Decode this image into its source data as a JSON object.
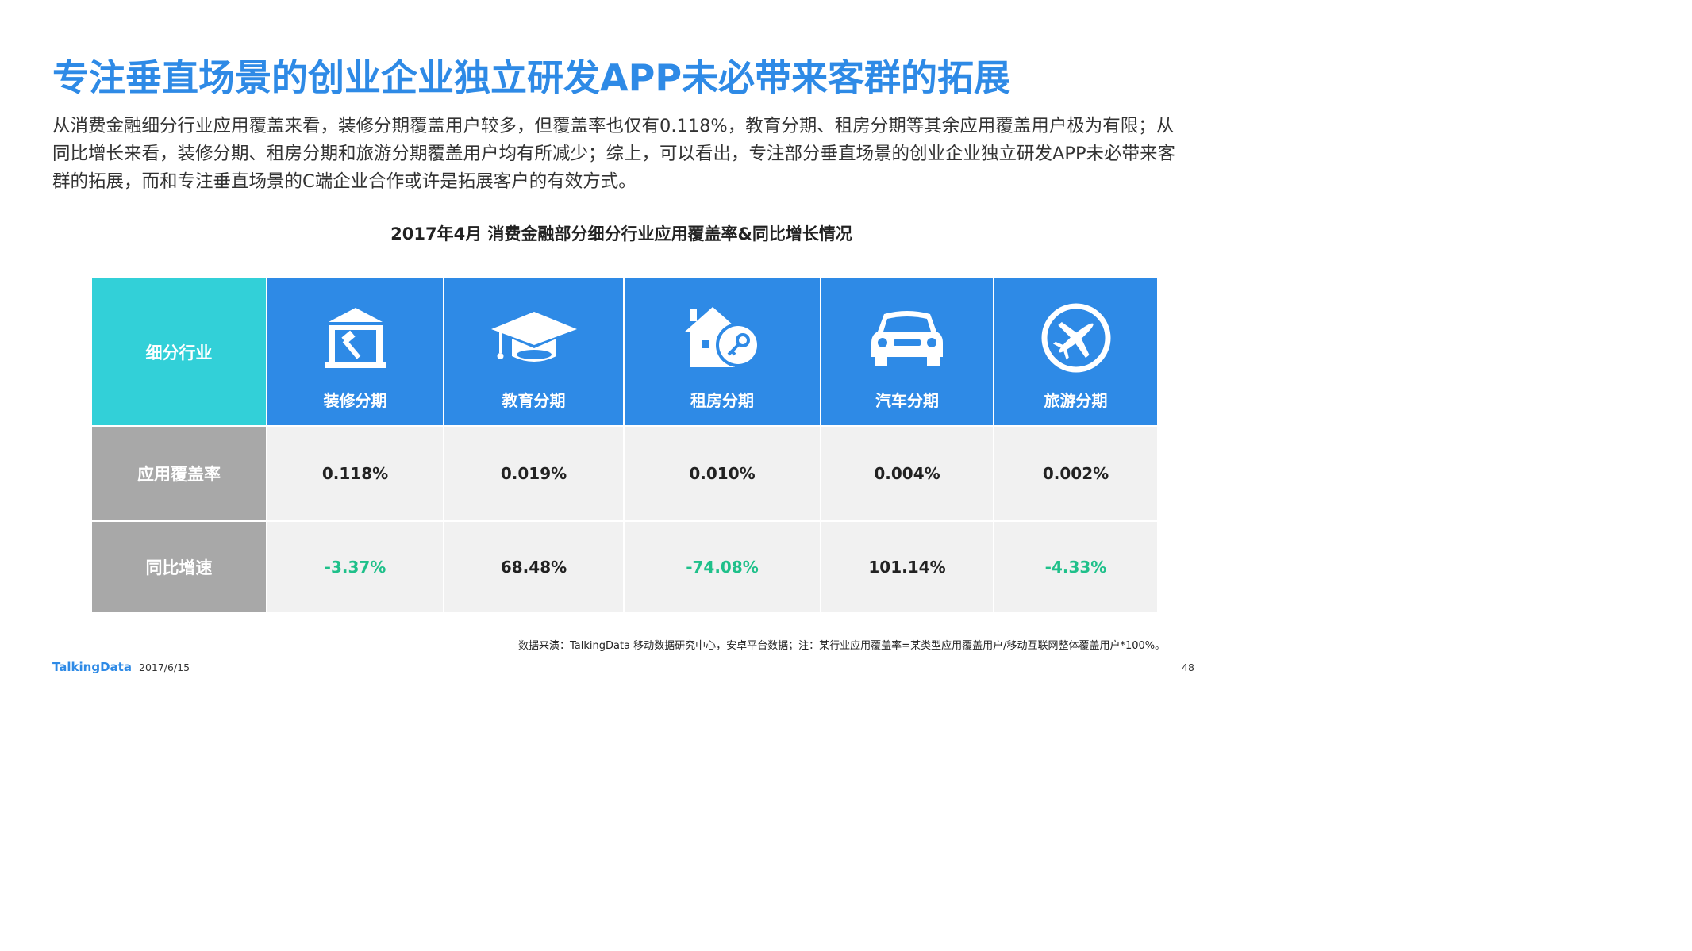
{
  "title": "专注垂直场景的创业企业独立研发APP未必带来客群的拓展",
  "intro": "从消费金融细分行业应用覆盖来看，装修分期覆盖用户较多，但覆盖率也仅有0.118%，教育分期、租房分期等其余应用覆盖用户极为有限；从同比增长来看，装修分期、租房分期和旅游分期覆盖用户均有所减少；综上，可以看出，专注部分垂直场景的创业企业独立研发APP未必带来客群的拓展，而和专注垂直场景的C端企业合作或许是拓展客户的有效方式。",
  "table": {
    "title": "2017年4月  消费金融部分细分行业应用覆盖率&同比增长情况",
    "corner_label": "细分行业",
    "columns": [
      {
        "label": "装修分期",
        "icon": "construction-icon",
        "coverage": "0.118%",
        "growth": "-3.37%"
      },
      {
        "label": "教育分期",
        "icon": "graduation-cap-icon",
        "coverage": "0.019%",
        "growth": "68.48%"
      },
      {
        "label": "租房分期",
        "icon": "house-key-icon",
        "coverage": "0.010%",
        "growth": "-74.08%"
      },
      {
        "label": "汽车分期",
        "icon": "car-icon",
        "coverage": "0.004%",
        "growth": "101.14%"
      },
      {
        "label": "旅游分期",
        "icon": "airplane-icon",
        "coverage": "0.002%",
        "growth": "-4.33%"
      }
    ],
    "row_labels": {
      "coverage": "应用覆盖率",
      "growth": "同比增速"
    }
  },
  "colors": {
    "title_blue": "#2e8ae6",
    "header_blue": "#2e8ae6",
    "header_teal": "#32d0d8",
    "label_gray": "#a8a8a8",
    "cell_bg": "#f1f1f1",
    "negative_green": "#1fc08a"
  },
  "footer": {
    "source": "数据来演：TalkingData 移动数据研究中心，安卓平台数据；注：某行业应用覆盖率=某类型应用覆盖用户/移动互联网整体覆盖用户*100%。",
    "brand": "TalkingData",
    "date": "2017/6/15",
    "page": "48"
  }
}
